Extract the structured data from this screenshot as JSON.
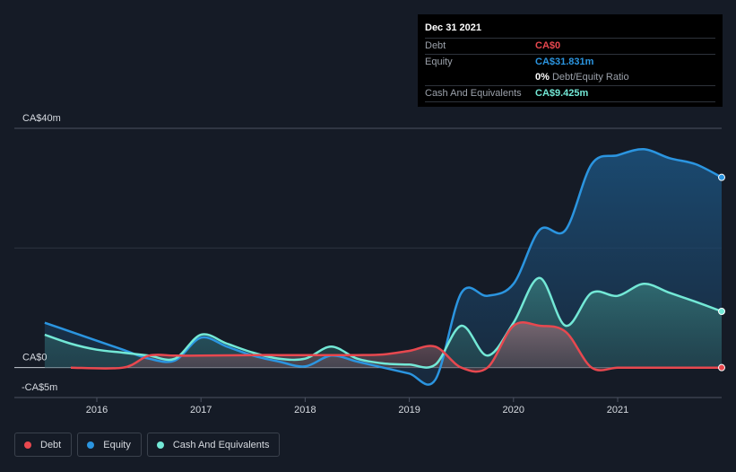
{
  "tooltip": {
    "date": "Dec 31 2021",
    "debt_label": "Debt",
    "debt_value": "CA$0",
    "equity_label": "Equity",
    "equity_value": "CA$31.831m",
    "ratio_value": "0%",
    "ratio_label": "Debt/Equity Ratio",
    "cash_label": "Cash And Equivalents",
    "cash_value": "CA$9.425m"
  },
  "legend": {
    "debt": "Debt",
    "equity": "Equity",
    "cash": "Cash And Equivalents"
  },
  "colors": {
    "debt": "#e8484f",
    "equity": "#2b95e0",
    "cash": "#73e8d6",
    "background": "#151b26"
  },
  "chart_data": {
    "type": "area",
    "y_tick_labels": [
      "CA$40m",
      "CA$0",
      "-CA$5m"
    ],
    "y_ticks": [
      40,
      0,
      -5
    ],
    "ylim": [
      -5,
      40
    ],
    "xlim": [
      2015.5,
      2022.0
    ],
    "x_tick_labels": [
      "2016",
      "2017",
      "2018",
      "2019",
      "2020",
      "2021"
    ],
    "x_ticks": [
      2016,
      2017,
      2018,
      2019,
      2020,
      2021
    ],
    "gridlines": [
      40,
      20,
      0
    ],
    "series": [
      {
        "name": "Debt",
        "x": [
          2015.75,
          2016.25,
          2016.5,
          2016.75,
          2017.0,
          2017.5,
          2017.75,
          2018.0,
          2018.25,
          2018.5,
          2018.75,
          2019.0,
          2019.25,
          2019.5,
          2019.75,
          2020.0,
          2020.25,
          2020.5,
          2020.75,
          2021.0,
          2021.25,
          2021.5,
          2021.75,
          2022.0
        ],
        "values": [
          0,
          0,
          2.0,
          2.0,
          2.0,
          2.1,
          2.1,
          2.1,
          2.1,
          2.1,
          2.2,
          2.8,
          3.5,
          0,
          0,
          7.0,
          7.0,
          6.0,
          0,
          0,
          0,
          0,
          0,
          0
        ]
      },
      {
        "name": "Equity",
        "x": [
          2015.5,
          2015.75,
          2016.0,
          2016.25,
          2016.5,
          2016.75,
          2017.0,
          2017.25,
          2017.5,
          2017.75,
          2018.0,
          2018.25,
          2018.5,
          2018.75,
          2019.0,
          2019.25,
          2019.5,
          2019.75,
          2020.0,
          2020.25,
          2020.5,
          2020.75,
          2021.0,
          2021.25,
          2021.5,
          2021.75,
          2022.0
        ],
        "values": [
          7.5,
          6.0,
          4.5,
          3.0,
          1.5,
          1.2,
          5.0,
          3.5,
          2.0,
          1.0,
          0.2,
          2.0,
          1.0,
          0.0,
          -1.0,
          -2.0,
          12.5,
          12.0,
          14.0,
          23.0,
          23.0,
          34.0,
          35.5,
          36.5,
          35.0,
          34.0,
          31.8
        ]
      },
      {
        "name": "Cash And Equivalents",
        "x": [
          2015.5,
          2015.75,
          2016.0,
          2016.25,
          2016.5,
          2016.75,
          2017.0,
          2017.25,
          2017.5,
          2017.75,
          2018.0,
          2018.25,
          2018.5,
          2018.75,
          2019.0,
          2019.25,
          2019.5,
          2019.75,
          2020.0,
          2020.25,
          2020.5,
          2020.75,
          2021.0,
          2021.25,
          2021.5,
          2021.75,
          2022.0
        ],
        "values": [
          5.5,
          4.0,
          3.0,
          2.5,
          2.0,
          1.5,
          5.5,
          4.0,
          2.5,
          1.5,
          1.5,
          3.5,
          1.5,
          0.7,
          0.5,
          0.5,
          7.0,
          2.0,
          7.5,
          15.0,
          7.0,
          12.5,
          12.0,
          14.0,
          12.5,
          11.0,
          9.4
        ]
      }
    ]
  }
}
